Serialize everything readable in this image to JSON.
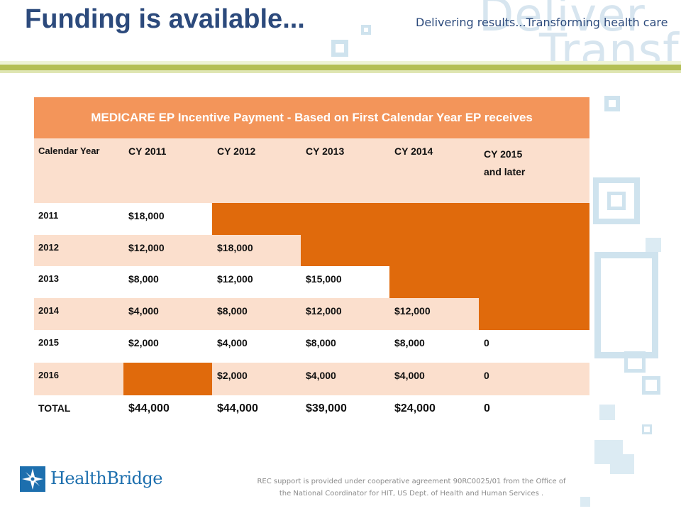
{
  "slide": {
    "title": "Funding is available...",
    "tagline": "Delivering results...Transforming health care",
    "watermark": [
      "Deliver",
      "Transfo"
    ]
  },
  "table": {
    "header": "MEDICARE EP Incentive Payment -  Based on First Calendar Year EP receives",
    "column_header_label": "Calendar Year",
    "columns": [
      "CY 2011",
      "CY 2012",
      "CY 2013",
      "CY 2014",
      "CY 2015"
    ],
    "column_note": "and later",
    "rows": [
      {
        "year": "2011",
        "cells": [
          "$18,000",
          "",
          "",
          "",
          ""
        ]
      },
      {
        "year": "2012",
        "cells": [
          "$12,000",
          "$18,000",
          "",
          "",
          ""
        ]
      },
      {
        "year": "2013",
        "cells": [
          "$8,000",
          "$12,000",
          "$15,000",
          "",
          ""
        ]
      },
      {
        "year": "2014",
        "cells": [
          "$4,000",
          "$8,000",
          "$12,000",
          "$12,000",
          ""
        ]
      },
      {
        "year": "2015",
        "cells": [
          "$2,000",
          "$4,000",
          "$8,000",
          "$8,000",
          "0"
        ]
      },
      {
        "year": "2016",
        "cells": [
          "",
          "$2,000",
          "$4,000",
          "$4,000",
          "0"
        ]
      }
    ],
    "total": {
      "label": "TOTAL",
      "cells": [
        "$44,000",
        "$44,000",
        "$39,000",
        "$24,000",
        "0"
      ]
    },
    "colors": {
      "header": "#f3955a",
      "peach_row": "#fbdfcd",
      "unavailable": "#e06a0c"
    }
  },
  "footer": {
    "logo_name": "HealthBridge",
    "logo_icon": "healthbridge-compass-icon",
    "note_lines": [
      "REC support is provided under cooperative agreement 90RC0025/01 from the Office of",
      "the National Coordinator for HIT, US Dept. of Health and Human Services ."
    ]
  }
}
